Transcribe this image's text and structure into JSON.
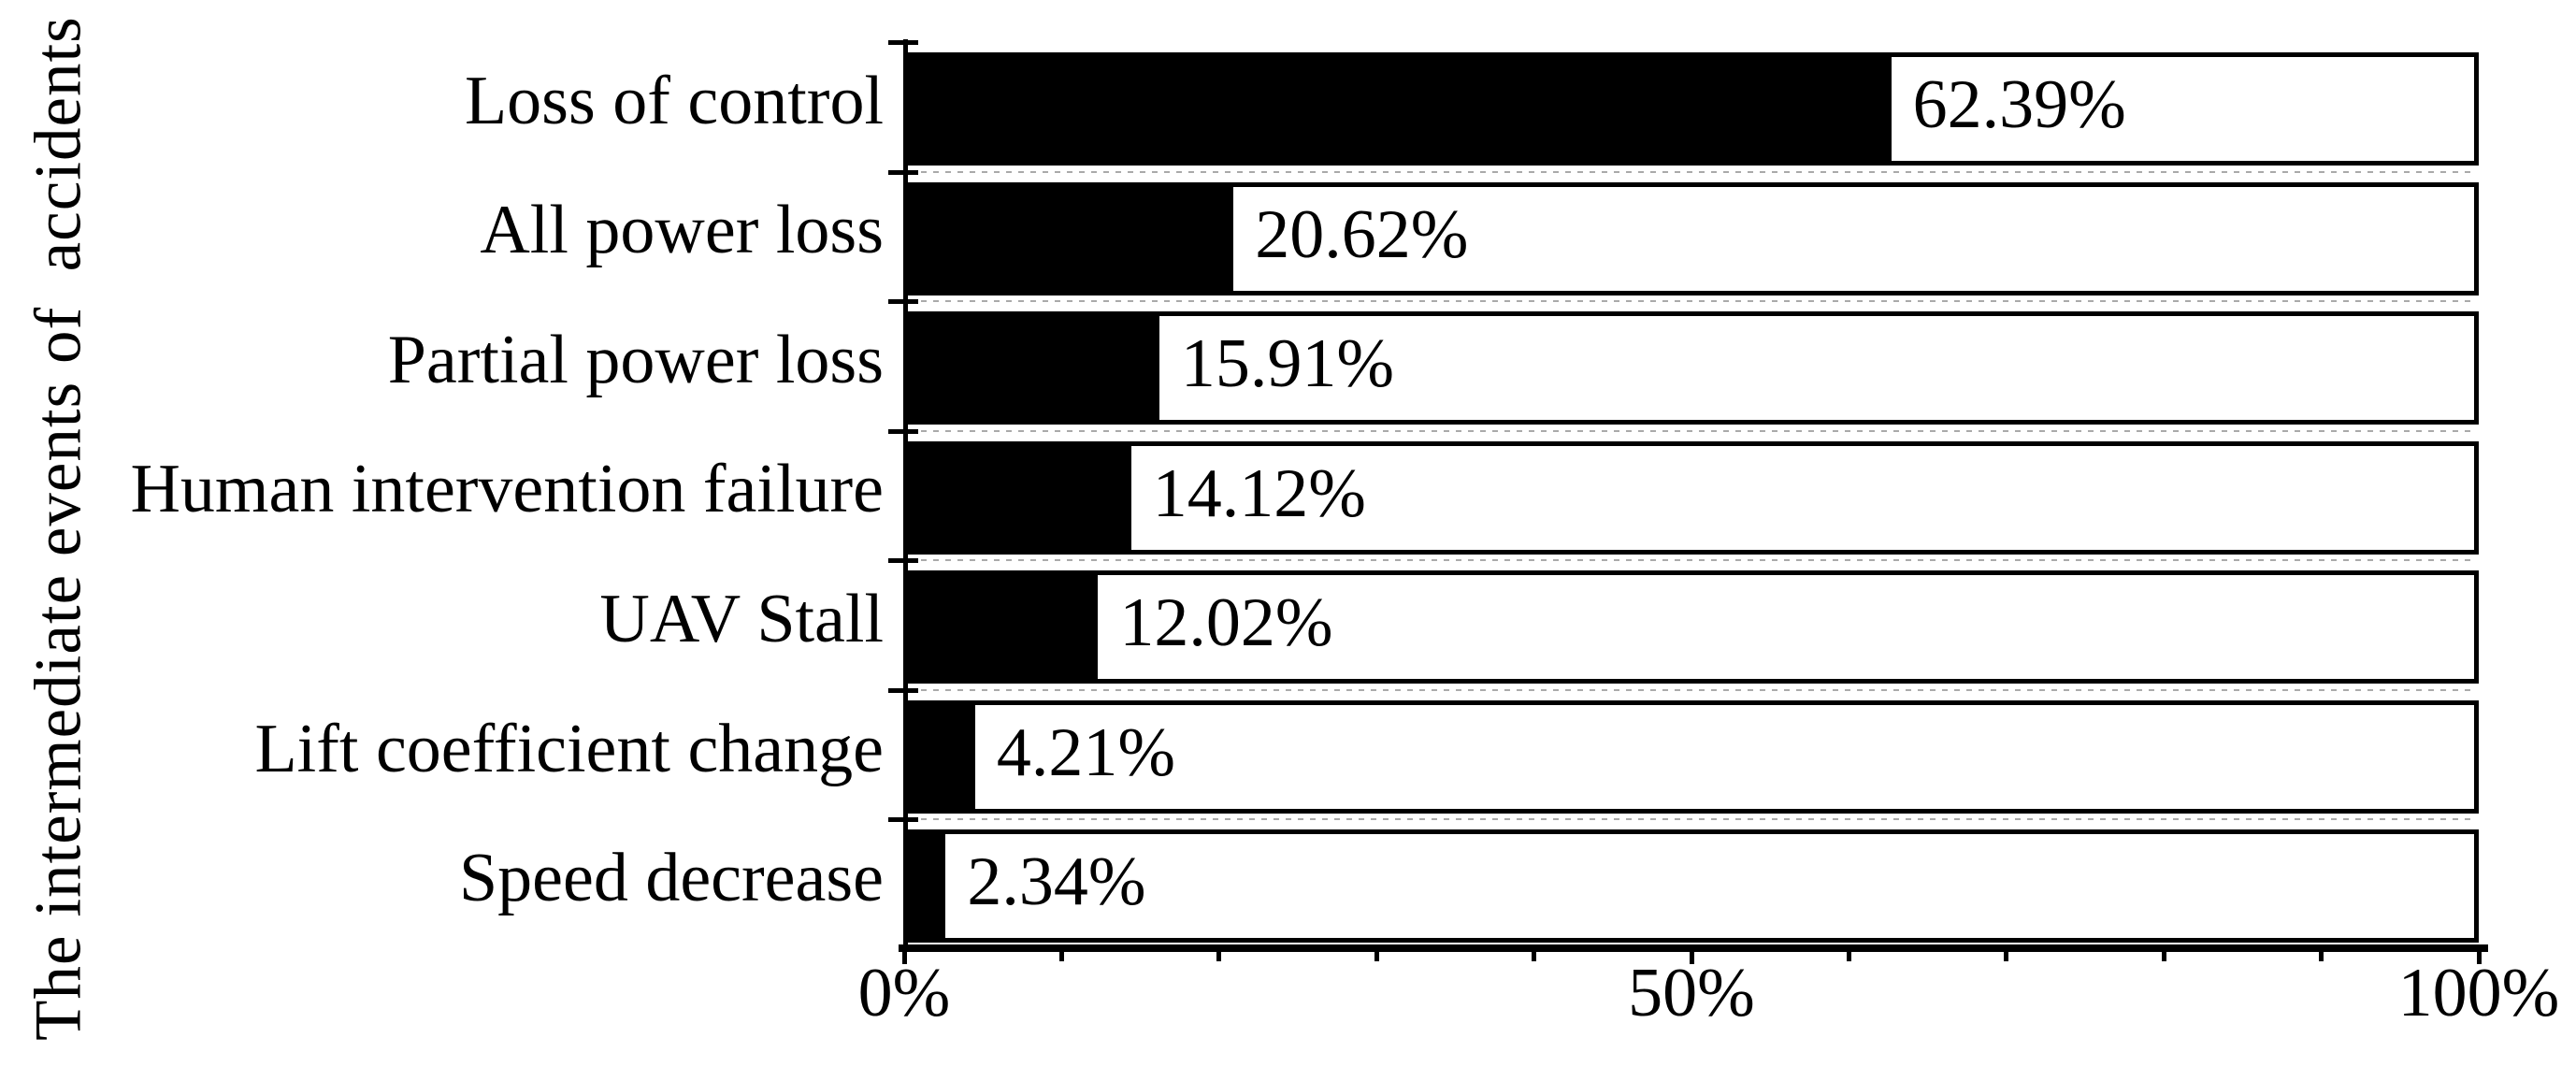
{
  "chart_data": {
    "type": "bar",
    "orientation": "horizontal",
    "title": "",
    "xlabel": "",
    "ylabel": "The intermediate events of  accidents",
    "categories": [
      "Loss of control",
      "All power loss",
      "Partial power loss",
      "Human intervention failure",
      "UAV Stall",
      "Lift coefficient change",
      "Speed decrease"
    ],
    "values": [
      62.39,
      20.62,
      15.91,
      14.12,
      12.02,
      4.21,
      2.34
    ],
    "value_labels": [
      "62.39%",
      "20.62%",
      "15.91%",
      "14.12%",
      "12.02%",
      "4.21%",
      "2.34%"
    ],
    "xlim": [
      0,
      100
    ],
    "x_major_ticks": [
      0,
      50,
      100
    ],
    "x_tick_labels": [
      "0%",
      "50%",
      "100%"
    ],
    "x_minor_tick_step": 10,
    "grid": "dashed horizontal lines at category boundaries",
    "legend": false,
    "bar_color": "#000000",
    "background_bar_color": "#ffffff",
    "outline_color": "#000000",
    "gridline_color": "#aaaaaa"
  }
}
